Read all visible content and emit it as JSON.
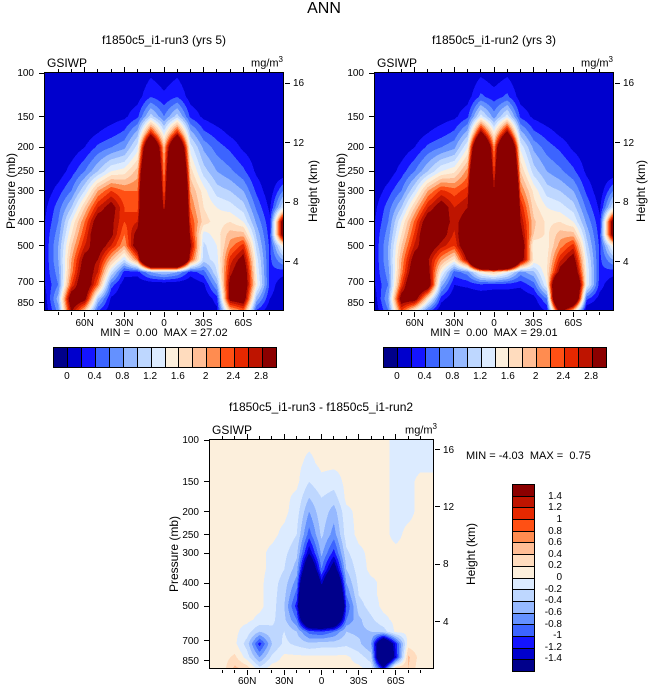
{
  "title": "ANN",
  "panels": [
    {
      "title": "f1850c5_i1-run3 (yrs 5)",
      "field": "GSIWP",
      "units_base": "mg/m",
      "units_exp": "3",
      "stats": "MIN =  0.00  MAX = 27.02"
    },
    {
      "title": "f1850c5_i1-run2 (yrs 3)",
      "field": "GSIWP",
      "units_base": "mg/m",
      "units_exp": "3",
      "stats": "MIN =  0.00  MAX = 29.01"
    },
    {
      "title": "f1850c5_i1-run3 - f1850c5_i1-run2",
      "field": "GSIWP",
      "units_base": "mg/m",
      "units_exp": "3",
      "stats": "MIN = -4.03  MAX =  0.75"
    }
  ],
  "axes": {
    "x": {
      "tick_labels": [
        "60N",
        "30N",
        "0",
        "30S",
        "60S"
      ],
      "tick_values": [
        60,
        30,
        0,
        -30,
        -60
      ],
      "minor_step_deg": 10,
      "range_deg": [
        90,
        -90
      ]
    },
    "pressure": {
      "label": "Pressure (mb)",
      "tick_labels": [
        "100",
        "150",
        "200",
        "250",
        "300",
        "400",
        "500",
        "700",
        "850"
      ],
      "tick_values": [
        100,
        150,
        200,
        250,
        300,
        400,
        500,
        700,
        850
      ],
      "range_mb": [
        100,
        910
      ],
      "scale": "log"
    },
    "height": {
      "label": "Height (km)",
      "tick_labels": [
        "16",
        "12",
        "8",
        "4"
      ],
      "tick_values": [
        16,
        12,
        8,
        4
      ]
    }
  },
  "colorbars": {
    "horizontal_labels": [
      "0",
      "0.4",
      "0.8",
      "1.2",
      "1.6",
      "2",
      "2.4",
      "2.8"
    ],
    "vertical_labels": [
      "1.4",
      "1.2",
      "1",
      "0.8",
      "0.6",
      "0.4",
      "0.2",
      "0",
      "-0.2",
      "-0.4",
      "-0.6",
      "-0.8",
      "-1",
      "-1.2",
      "-1.4"
    ]
  },
  "palette": [
    "#00008B",
    "#0000CD",
    "#1414FF",
    "#3C64FF",
    "#6491FF",
    "#96B9FF",
    "#BED7FF",
    "#DCEBFF",
    "#FCEFDC",
    "#FFDCBE",
    "#FFBE96",
    "#FF8C50",
    "#FF5014",
    "#E62800",
    "#BE1400",
    "#8B0000"
  ],
  "chart_data": [
    {
      "type": "heatmap",
      "name": "f1850c5_i1-run3",
      "season": "ANN",
      "variable": "GSIWP",
      "units": "mg/m3",
      "min": 0.0,
      "max": 27.02,
      "thresholds": [
        0,
        0.2,
        0.4,
        0.6,
        0.8,
        1.0,
        1.2,
        1.4,
        1.6,
        1.8,
        2.0,
        2.2,
        2.4,
        2.6,
        2.8
      ],
      "lats": [
        90,
        80,
        70,
        60,
        50,
        40,
        30,
        20,
        10,
        0,
        -10,
        -20,
        -30,
        -40,
        -50,
        -60,
        -70,
        -80,
        -90
      ],
      "levels_mb": [
        100,
        125,
        150,
        175,
        200,
        250,
        300,
        350,
        400,
        450,
        500,
        570,
        640,
        720,
        820,
        910
      ],
      "values": [
        [
          0,
          0,
          0,
          0,
          0,
          0,
          0,
          0,
          0.15,
          0.05,
          0.15,
          0,
          0,
          0,
          0,
          0,
          0,
          0,
          0
        ],
        [
          0,
          0,
          0,
          0,
          0,
          0,
          0.05,
          0.1,
          0.4,
          0.25,
          0.4,
          0.1,
          0.05,
          0,
          0,
          0,
          0,
          0,
          0
        ],
        [
          0,
          0,
          0,
          0,
          0.05,
          0.1,
          0.15,
          0.35,
          1.1,
          0.6,
          1.1,
          0.35,
          0.15,
          0.05,
          0,
          0,
          0,
          0,
          0
        ],
        [
          0,
          0,
          0,
          0.05,
          0.2,
          0.3,
          0.45,
          0.9,
          2.6,
          1.3,
          2.6,
          0.9,
          0.45,
          0.3,
          0.15,
          0.05,
          0,
          0,
          0
        ],
        [
          0,
          0,
          0.05,
          0.2,
          0.45,
          0.6,
          0.75,
          1.3,
          4.5,
          1.9,
          4.5,
          1.3,
          0.75,
          0.5,
          0.35,
          0.15,
          0.05,
          0,
          0
        ],
        [
          0,
          0.05,
          0.3,
          0.6,
          1.0,
          1.4,
          1.5,
          1.9,
          5.5,
          2.1,
          5.5,
          1.7,
          1.1,
          0.8,
          0.65,
          0.45,
          0.15,
          0,
          0
        ],
        [
          0.05,
          0.3,
          0.6,
          1.2,
          2.0,
          2.4,
          2.2,
          2.2,
          6,
          2.3,
          6,
          2.0,
          1.5,
          1.1,
          1.0,
          0.8,
          0.35,
          0.05,
          0.6
        ],
        [
          0.15,
          0.5,
          1.0,
          1.8,
          2.6,
          3.0,
          2.4,
          2.3,
          6,
          2.6,
          6,
          2.2,
          1.6,
          1.4,
          1.3,
          1.1,
          0.55,
          0.15,
          1.2
        ],
        [
          0.2,
          0.6,
          1.4,
          2.2,
          3.1,
          2.9,
          2.4,
          2.6,
          6,
          4,
          6,
          2.4,
          1.7,
          1.5,
          1.6,
          1.4,
          0.75,
          0.25,
          3.2
        ],
        [
          0.25,
          0.7,
          1.6,
          2.4,
          3.3,
          2.9,
          2.2,
          3.0,
          7,
          6,
          7,
          2.6,
          1.3,
          1.5,
          1.9,
          1.9,
          0.95,
          0.3,
          3.2
        ],
        [
          0.25,
          0.8,
          1.8,
          2.6,
          3.1,
          2.6,
          2.0,
          3.2,
          7,
          7,
          7,
          2.9,
          1.15,
          1.4,
          2.1,
          2.5,
          1.1,
          0.35,
          1.5
        ],
        [
          0.25,
          0.8,
          2.0,
          3.0,
          2.8,
          1.9,
          1.2,
          2.2,
          6,
          6,
          6,
          2.4,
          1.1,
          1.3,
          2.5,
          3.0,
          1.3,
          0.35,
          0.8
        ],
        [
          0.25,
          0.7,
          2.1,
          3.2,
          2.6,
          1.2,
          0.3,
          0.3,
          0.8,
          1.0,
          0.8,
          0.3,
          0.5,
          1.2,
          2.7,
          3.3,
          1.4,
          0.35,
          0.3
        ],
        [
          0.2,
          0.6,
          2.4,
          3.4,
          2.2,
          0.5,
          0.05,
          0,
          0,
          0,
          0,
          0,
          0.15,
          0.8,
          3.0,
          3.4,
          1.5,
          0.35,
          0
        ],
        [
          0.1,
          0.9,
          3.3,
          3.0,
          1.0,
          0.15,
          0,
          0,
          0,
          0,
          0,
          0,
          0,
          0.3,
          3.0,
          3.2,
          0.9,
          0.2,
          0
        ],
        [
          0.05,
          0.7,
          2.9,
          1.9,
          0.45,
          0.05,
          0,
          0,
          0,
          0,
          0,
          0,
          0,
          0.15,
          1.9,
          2.3,
          0.4,
          0.05,
          0
        ]
      ]
    },
    {
      "type": "heatmap",
      "name": "f1850c5_i1-run2",
      "season": "ANN",
      "variable": "GSIWP",
      "units": "mg/m3",
      "min": 0.0,
      "max": 29.01,
      "thresholds": [
        0,
        0.2,
        0.4,
        0.6,
        0.8,
        1.0,
        1.2,
        1.4,
        1.6,
        1.8,
        2.0,
        2.2,
        2.4,
        2.6,
        2.8
      ],
      "lats": [
        90,
        80,
        70,
        60,
        50,
        40,
        30,
        20,
        10,
        0,
        -10,
        -20,
        -30,
        -40,
        -50,
        -60,
        -70,
        -80,
        -90
      ],
      "levels_mb": [
        100,
        125,
        150,
        175,
        200,
        250,
        300,
        350,
        400,
        450,
        500,
        570,
        640,
        720,
        820,
        910
      ],
      "values": [
        [
          0,
          0,
          0,
          0,
          0,
          0,
          0,
          0,
          0.15,
          0.05,
          0.15,
          0,
          0,
          0,
          0,
          0,
          0,
          0,
          0
        ],
        [
          0,
          0,
          0,
          0,
          0,
          0,
          0.05,
          0.1,
          0.45,
          0.3,
          0.45,
          0.1,
          0.05,
          0,
          0,
          0,
          0,
          0,
          0
        ],
        [
          0,
          0,
          0,
          0,
          0.05,
          0.1,
          0.15,
          0.35,
          1.3,
          0.7,
          1.3,
          0.35,
          0.15,
          0.05,
          0,
          0,
          0,
          0,
          0
        ],
        [
          0,
          0,
          0,
          0.05,
          0.2,
          0.3,
          0.45,
          0.9,
          3.0,
          1.5,
          3.0,
          0.9,
          0.45,
          0.3,
          0.15,
          0.05,
          0,
          0,
          0
        ],
        [
          0,
          0,
          0.05,
          0.2,
          0.45,
          0.6,
          0.75,
          1.4,
          5,
          2.1,
          5,
          1.35,
          0.75,
          0.5,
          0.35,
          0.15,
          0.05,
          0,
          0
        ],
        [
          0,
          0.05,
          0.3,
          0.6,
          1.0,
          1.4,
          1.55,
          2.1,
          6,
          2.4,
          6,
          1.8,
          1.1,
          0.8,
          0.65,
          0.45,
          0.15,
          0,
          0
        ],
        [
          0.05,
          0.3,
          0.6,
          1.2,
          2.0,
          2.45,
          2.3,
          2.5,
          7,
          2.8,
          7,
          2.2,
          1.55,
          1.1,
          1.0,
          0.8,
          0.35,
          0.05,
          0.6
        ],
        [
          0.15,
          0.5,
          1.0,
          1.8,
          2.6,
          3.05,
          2.6,
          2.8,
          7,
          3.2,
          7,
          2.6,
          1.7,
          1.4,
          1.3,
          1.1,
          0.55,
          0.15,
          1.2
        ],
        [
          0.2,
          0.6,
          1.4,
          2.25,
          3.15,
          3.0,
          2.7,
          3.0,
          8,
          5.5,
          8,
          2.8,
          1.85,
          1.55,
          1.6,
          1.4,
          0.75,
          0.25,
          3.2
        ],
        [
          0.25,
          0.7,
          1.6,
          2.45,
          3.35,
          3.0,
          2.55,
          3.4,
          9,
          8,
          9,
          3.0,
          1.8,
          1.55,
          1.9,
          1.9,
          0.95,
          0.3,
          3.2
        ],
        [
          0.25,
          0.8,
          1.8,
          2.65,
          3.15,
          2.7,
          2.4,
          3.4,
          9,
          9,
          9,
          3.4,
          1.4,
          1.5,
          2.1,
          2.5,
          1.1,
          0.35,
          1.5
        ],
        [
          0.25,
          0.8,
          2.0,
          3.05,
          2.85,
          2.05,
          1.55,
          2.9,
          7,
          7.5,
          7,
          3.2,
          1.55,
          1.55,
          2.55,
          3.05,
          1.3,
          0.35,
          0.8
        ],
        [
          0.25,
          0.7,
          2.1,
          3.3,
          3.0,
          1.45,
          0.5,
          0.7,
          1.5,
          1.8,
          1.4,
          0.7,
          0.95,
          1.6,
          3.0,
          3.5,
          1.4,
          0.35,
          0.3
        ],
        [
          0.2,
          0.6,
          2.4,
          3.7,
          3.3,
          0.9,
          0.2,
          0.25,
          0.35,
          0.3,
          0.3,
          0.25,
          0.5,
          1.4,
          5.0,
          4.5,
          1.4,
          0.3,
          0
        ],
        [
          0.1,
          0.8,
          3.1,
          3.1,
          1.6,
          0.3,
          0,
          0,
          0,
          0,
          0,
          0,
          0.1,
          0.6,
          5.5,
          4.4,
          0.45,
          0.1,
          0
        ],
        [
          0.05,
          0.6,
          2.45,
          1.6,
          0.6,
          0,
          0,
          0,
          0,
          0,
          0,
          0,
          0,
          0.25,
          3.2,
          1.95,
          0,
          0,
          0
        ]
      ]
    },
    {
      "type": "heatmap",
      "name": "f1850c5_i1-run3 - f1850c5_i1-run2",
      "season": "ANN",
      "variable": "GSIWP",
      "units": "mg/m3",
      "min": -4.03,
      "max": 0.75,
      "thresholds": [
        -1.4,
        -1.2,
        -1.0,
        -0.8,
        -0.6,
        -0.4,
        -0.2,
        0,
        0.2,
        0.4,
        0.6,
        0.8,
        1.0,
        1.2,
        1.4
      ],
      "lats": [
        90,
        80,
        70,
        60,
        50,
        40,
        30,
        20,
        10,
        0,
        -10,
        -20,
        -30,
        -40,
        -50,
        -60,
        -70,
        -80,
        -90
      ],
      "levels_mb": [
        100,
        125,
        150,
        175,
        200,
        250,
        300,
        350,
        400,
        450,
        500,
        570,
        640,
        720,
        820,
        910
      ],
      "values": [
        [
          0,
          0.05,
          0.05,
          0.05,
          0.05,
          0.05,
          0.05,
          0.05,
          0.05,
          0.05,
          0.05,
          0.05,
          0.05,
          0.05,
          0.05,
          -0.05,
          -0.05,
          -0.05,
          0
        ],
        [
          0,
          0.05,
          0.05,
          0.05,
          0.05,
          0.05,
          0.05,
          0.05,
          -0.05,
          0.05,
          0.05,
          0.05,
          0.05,
          0.05,
          0.05,
          -0.05,
          -0.05,
          -0.05,
          0
        ],
        [
          0.05,
          0.05,
          0.05,
          0.05,
          0.05,
          0.05,
          0.05,
          0.05,
          -0.2,
          -0.05,
          -0.1,
          0.05,
          0.05,
          0.05,
          0.05,
          -0.05,
          -0.05,
          0.05,
          0
        ],
        [
          0.05,
          0.05,
          0.05,
          0.05,
          0.05,
          0.05,
          0.05,
          -0.05,
          -0.4,
          -0.2,
          -0.3,
          0.05,
          0.05,
          0.05,
          0.05,
          -0.05,
          -0.05,
          0.05,
          0
        ],
        [
          0.05,
          0.05,
          0.05,
          0.05,
          0.05,
          0.05,
          0.05,
          -0.1,
          -0.6,
          -0.25,
          -0.5,
          -0.05,
          0.05,
          0.05,
          0.05,
          -0.05,
          -0.05,
          0.05,
          0
        ],
        [
          0.05,
          0.05,
          0.05,
          0.05,
          0.05,
          0.05,
          -0.05,
          -0.2,
          -0.9,
          -0.35,
          -0.7,
          -0.1,
          0.05,
          0.05,
          0.05,
          -0.05,
          0.05,
          0.05,
          0
        ],
        [
          0.05,
          0.05,
          0.05,
          0.05,
          0.05,
          -0.05,
          -0.15,
          -0.35,
          -1.4,
          -0.55,
          -1.1,
          -0.25,
          -0.05,
          0.05,
          0.05,
          0.05,
          0.05,
          0.05,
          0
        ],
        [
          0.05,
          0.05,
          0.05,
          0.05,
          0.05,
          -0.05,
          -0.2,
          -0.5,
          -2.2,
          -0.8,
          -1.7,
          -0.4,
          -0.1,
          0.05,
          0.05,
          0.05,
          0.05,
          0.05,
          0
        ],
        [
          0.05,
          0.05,
          0.05,
          0.05,
          0.05,
          -0.1,
          -0.3,
          -0.7,
          -3.2,
          -1.3,
          -2.6,
          -0.6,
          -0.15,
          -0.05,
          0.05,
          0.05,
          0.05,
          0.05,
          0
        ],
        [
          0.05,
          0.05,
          0.05,
          0.05,
          0.05,
          -0.1,
          -0.35,
          -0.9,
          -3.8,
          -2.2,
          -3.2,
          -0.8,
          -0.2,
          -0.05,
          0.05,
          0.05,
          0.05,
          0.05,
          0
        ],
        [
          0.05,
          0.05,
          0.05,
          0.05,
          0.05,
          -0.1,
          -0.4,
          -1.1,
          -4.0,
          -3.2,
          -3.8,
          -1.0,
          -0.3,
          -0.1,
          0.05,
          0.05,
          0.05,
          0.05,
          0
        ],
        [
          0.05,
          0.05,
          0.05,
          0.05,
          -0.05,
          -0.15,
          -0.35,
          -0.8,
          -2.6,
          -2.8,
          -2.4,
          -0.8,
          -0.45,
          -0.25,
          -0.05,
          0.05,
          0.05,
          0.05,
          0
        ],
        [
          0.05,
          0.05,
          0.05,
          -0.1,
          -0.4,
          -0.25,
          -0.2,
          -0.4,
          -0.9,
          -1.0,
          -0.8,
          -0.4,
          -0.45,
          -0.4,
          -0.3,
          0.05,
          0.05,
          0.05,
          0
        ],
        [
          0.05,
          0.05,
          0.05,
          -0.3,
          -1.1,
          -0.4,
          -0.15,
          -0.25,
          -0.35,
          -0.3,
          -0.3,
          -0.25,
          -0.35,
          -0.6,
          -2.4,
          -1.1,
          0.1,
          0.05,
          0
        ],
        [
          0.05,
          0.1,
          0.25,
          -0.1,
          -0.6,
          -0.15,
          0.05,
          0.05,
          0.05,
          0.05,
          0.05,
          0.05,
          -0.1,
          -0.3,
          -2.8,
          -1.2,
          0.45,
          0.1,
          0
        ],
        [
          0.05,
          0.1,
          0.45,
          0.3,
          -0.15,
          0.1,
          0.1,
          0.05,
          0.1,
          0.05,
          0.05,
          0.05,
          0.05,
          -0.1,
          -1.3,
          0.35,
          0.4,
          0.05,
          0
        ]
      ]
    }
  ]
}
